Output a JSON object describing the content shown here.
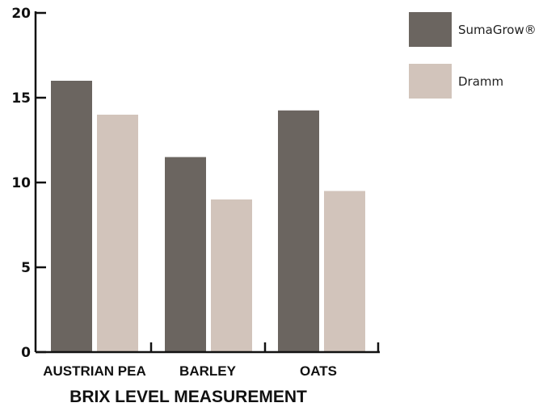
{
  "chart_data": {
    "type": "bar",
    "categories": [
      "AUSTRIAN PEA",
      "BARLEY",
      "OATS"
    ],
    "series": [
      {
        "name": "SumaGrow®",
        "color": "#6b6560",
        "values": [
          16,
          11.5,
          14.25
        ]
      },
      {
        "name": "Dramm",
        "color": "#d2c4bb",
        "values": [
          14,
          9,
          9.5
        ]
      }
    ],
    "title": "",
    "xlabel": "BRIX LEVEL MEASUREMENT",
    "ylabel": "",
    "ylim": [
      0,
      20
    ],
    "yticks": [
      0,
      5,
      10,
      15,
      20
    ],
    "grid": false,
    "legend_position": "top-right"
  }
}
